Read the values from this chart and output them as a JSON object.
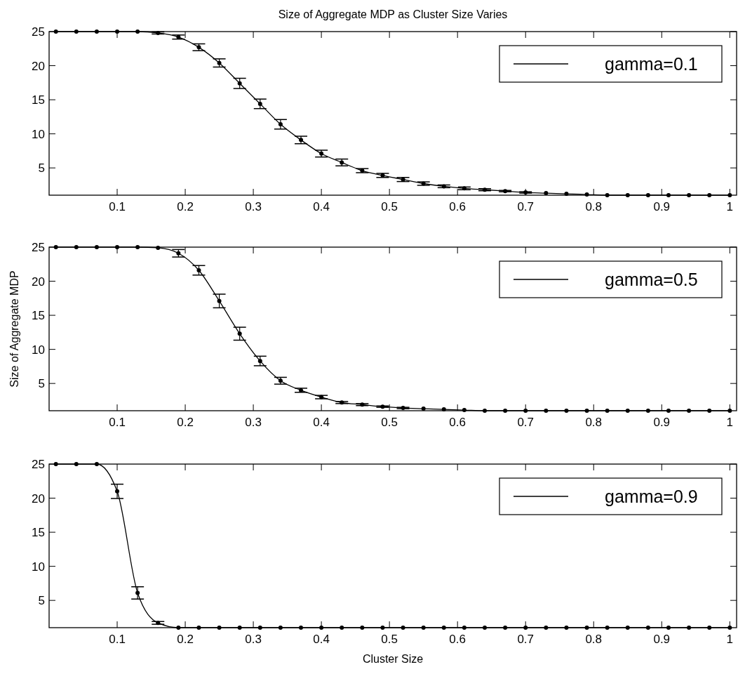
{
  "chart_data": [
    {
      "type": "line",
      "title": "Size of Aggregate MDP as Cluster Size Varies",
      "x": [
        0.01,
        0.04,
        0.07,
        0.1,
        0.13,
        0.16,
        0.19,
        0.22,
        0.25,
        0.28,
        0.31,
        0.34,
        0.37,
        0.4,
        0.43,
        0.46,
        0.49,
        0.52,
        0.55,
        0.58,
        0.61,
        0.64,
        0.67,
        0.7,
        0.73,
        0.76,
        0.79,
        0.82,
        0.85,
        0.88,
        0.91,
        0.94,
        0.97,
        1.0
      ],
      "xlim": [
        0,
        1.01
      ],
      "xticks": [
        0.1,
        0.2,
        0.3,
        0.4,
        0.5,
        0.6,
        0.7,
        0.8,
        0.9,
        1
      ],
      "ylim": [
        1,
        25
      ],
      "yticks": [
        5,
        10,
        15,
        20,
        25
      ],
      "legend": "top right",
      "marker": "circle",
      "line_style": "solid",
      "series": [
        {
          "name": "gamma=0.1",
          "color": "#000000",
          "values": [
            25,
            25,
            25,
            25,
            25,
            24.8,
            24.2,
            22.7,
            20.4,
            17.4,
            14.4,
            11.4,
            9.1,
            7.1,
            5.8,
            4.6,
            3.9,
            3.3,
            2.7,
            2.3,
            2,
            1.8,
            1.6,
            1.4,
            1.3,
            1.2,
            1.1,
            1,
            1,
            1,
            1,
            1,
            1,
            1
          ],
          "errors": [
            null,
            null,
            null,
            null,
            null,
            0.15,
            0.3,
            0.5,
            0.6,
            0.75,
            0.7,
            0.7,
            0.55,
            0.5,
            0.5,
            0.3,
            0.3,
            0.3,
            0.25,
            0.2,
            0.2,
            0.15,
            0.1,
            0.1,
            null,
            null,
            null,
            null,
            null,
            null,
            null,
            null,
            null,
            null
          ]
        }
      ]
    },
    {
      "type": "line",
      "ylabel": "Size of Aggregate MDP",
      "x": [
        0.01,
        0.04,
        0.07,
        0.1,
        0.13,
        0.16,
        0.19,
        0.22,
        0.25,
        0.28,
        0.31,
        0.34,
        0.37,
        0.4,
        0.43,
        0.46,
        0.49,
        0.52,
        0.55,
        0.58,
        0.61,
        0.64,
        0.67,
        0.7,
        0.73,
        0.76,
        0.79,
        0.82,
        0.85,
        0.88,
        0.91,
        0.94,
        0.97,
        1.0
      ],
      "xlim": [
        0,
        1.01
      ],
      "xticks": [
        0.1,
        0.2,
        0.3,
        0.4,
        0.5,
        0.6,
        0.7,
        0.8,
        0.9,
        1
      ],
      "ylim": [
        1,
        25
      ],
      "yticks": [
        5,
        10,
        15,
        20,
        25
      ],
      "legend": "top right",
      "marker": "circle",
      "line_style": "solid",
      "series": [
        {
          "name": "gamma=0.5",
          "color": "#000000",
          "values": [
            25,
            25,
            25,
            25,
            25,
            24.9,
            24.1,
            21.6,
            17.1,
            12.3,
            8.3,
            5.4,
            4.0,
            3,
            2.2,
            1.9,
            1.6,
            1.4,
            1.3,
            1.2,
            1.1,
            1,
            1,
            1,
            1,
            1,
            1,
            1,
            1,
            1,
            1,
            1,
            1,
            1
          ],
          "errors": [
            null,
            null,
            null,
            null,
            null,
            null,
            0.55,
            0.7,
            1.0,
            0.95,
            0.7,
            0.5,
            0.3,
            0.25,
            0.15,
            0.15,
            0.1,
            0.1,
            null,
            null,
            null,
            null,
            null,
            null,
            null,
            null,
            null,
            null,
            null,
            null,
            null,
            null,
            null,
            null
          ]
        }
      ]
    },
    {
      "type": "line",
      "xlabel": "Cluster Size",
      "x": [
        0.01,
        0.04,
        0.07,
        0.1,
        0.13,
        0.16,
        0.19,
        0.22,
        0.25,
        0.28,
        0.31,
        0.34,
        0.37,
        0.4,
        0.43,
        0.46,
        0.49,
        0.52,
        0.55,
        0.58,
        0.61,
        0.64,
        0.67,
        0.7,
        0.73,
        0.76,
        0.79,
        0.82,
        0.85,
        0.88,
        0.91,
        0.94,
        0.97,
        1.0
      ],
      "xlim": [
        0,
        1.01
      ],
      "xticks": [
        0.1,
        0.2,
        0.3,
        0.4,
        0.5,
        0.6,
        0.7,
        0.8,
        0.9,
        1
      ],
      "ylim": [
        1,
        25
      ],
      "yticks": [
        5,
        10,
        15,
        20,
        25
      ],
      "legend": "top right",
      "marker": "circle",
      "line_style": "solid",
      "series": [
        {
          "name": "gamma=0.9",
          "color": "#000000",
          "values": [
            25,
            25,
            25,
            21.0,
            6.1,
            1.7,
            1,
            1,
            1,
            1,
            1,
            1,
            1,
            1,
            1,
            1,
            1,
            1,
            1,
            1,
            1,
            1,
            1,
            1,
            1,
            1,
            1,
            1,
            1,
            1,
            1,
            1,
            1,
            1
          ],
          "errors": [
            null,
            null,
            null,
            1.05,
            0.9,
            0.2,
            null,
            null,
            null,
            null,
            null,
            null,
            null,
            null,
            null,
            null,
            null,
            null,
            null,
            null,
            null,
            null,
            null,
            null,
            null,
            null,
            null,
            null,
            null,
            null,
            null,
            null,
            null,
            null
          ]
        }
      ]
    }
  ]
}
